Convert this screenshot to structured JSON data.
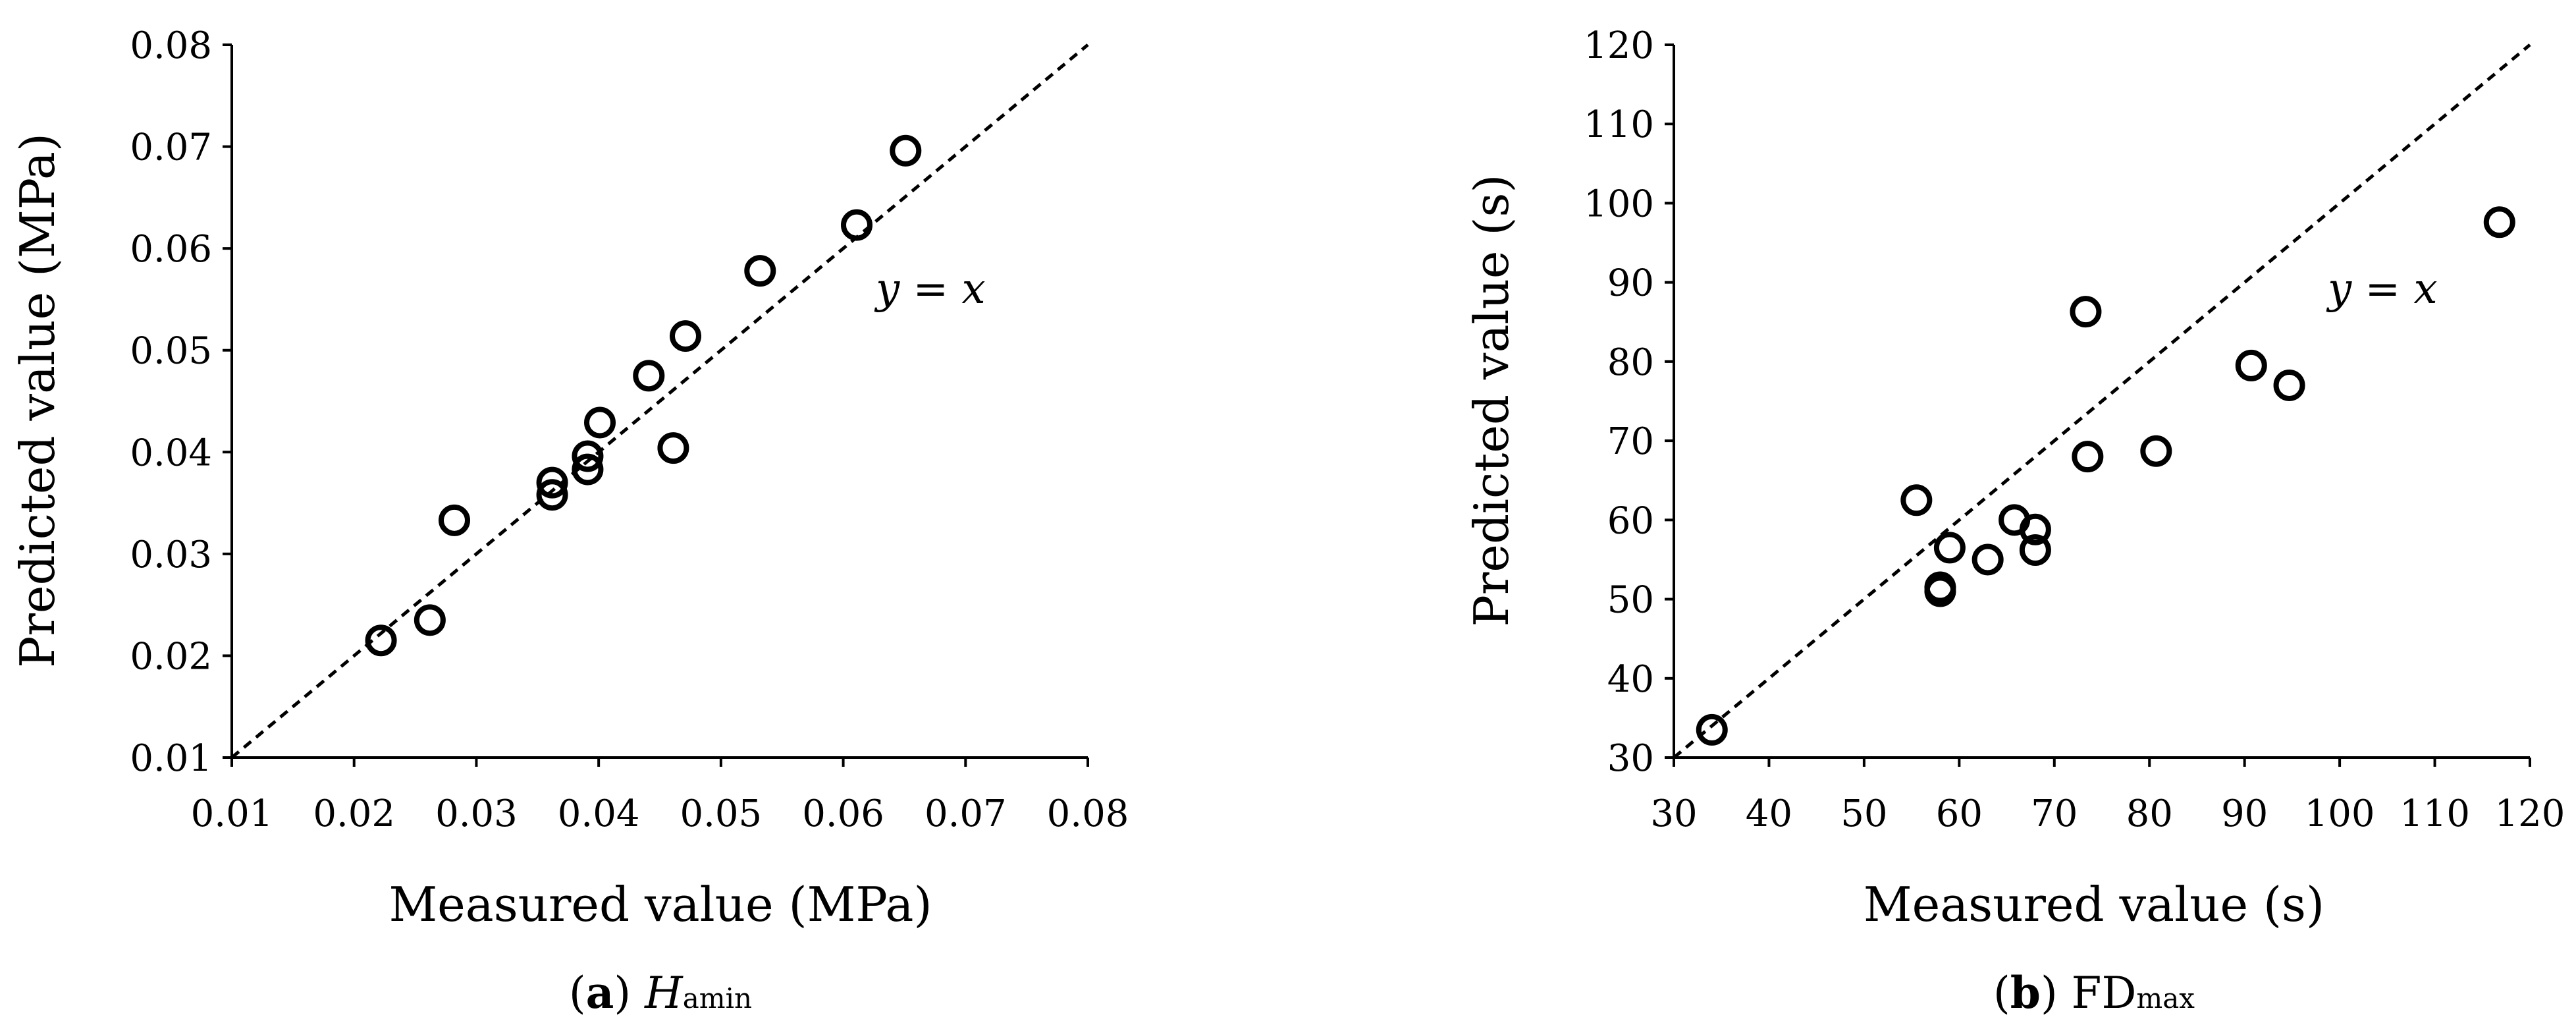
{
  "chart_data": [
    {
      "type": "scatter",
      "xlabel": "Measured value (MPa)",
      "ylabel": "Predicted value (MPa)",
      "xlim": [
        0.01,
        0.08
      ],
      "ylim": [
        0.01,
        0.08
      ],
      "x_ticks": [
        "0.01",
        "0.02",
        "0.03",
        "0.04",
        "0.05",
        "0.06",
        "0.07",
        "0.08"
      ],
      "y_ticks": [
        "0.01",
        "0.02",
        "0.03",
        "0.04",
        "0.05",
        "0.06",
        "0.07",
        "0.08"
      ],
      "reference_line": "y = x",
      "annotation": "y = x",
      "caption": {
        "letter": "a",
        "main": "H",
        "sub": "amin"
      },
      "grid": false,
      "points": [
        {
          "x": 0.0222,
          "y": 0.0215
        },
        {
          "x": 0.0262,
          "y": 0.0235
        },
        {
          "x": 0.0282,
          "y": 0.0333
        },
        {
          "x": 0.0362,
          "y": 0.037
        },
        {
          "x": 0.0362,
          "y": 0.0358
        },
        {
          "x": 0.0391,
          "y": 0.0396
        },
        {
          "x": 0.0391,
          "y": 0.0383
        },
        {
          "x": 0.0401,
          "y": 0.0429
        },
        {
          "x": 0.0441,
          "y": 0.0475
        },
        {
          "x": 0.0461,
          "y": 0.0404
        },
        {
          "x": 0.0471,
          "y": 0.0514
        },
        {
          "x": 0.0532,
          "y": 0.0578
        },
        {
          "x": 0.0611,
          "y": 0.0623
        },
        {
          "x": 0.0651,
          "y": 0.0696
        }
      ]
    },
    {
      "type": "scatter",
      "xlabel": "Measured value (s)",
      "ylabel": "Predicted value (s)",
      "xlim": [
        30,
        120
      ],
      "ylim": [
        30,
        120
      ],
      "x_ticks": [
        "30",
        "40",
        "50",
        "60",
        "70",
        "80",
        "90",
        "100",
        "110",
        "120"
      ],
      "y_ticks": [
        "30",
        "40",
        "50",
        "60",
        "70",
        "80",
        "90",
        "100",
        "110",
        "120"
      ],
      "reference_line": "y = x",
      "annotation": "y = x",
      "caption": {
        "letter": "b",
        "main": "FD",
        "sub": "max"
      },
      "grid": false,
      "points": [
        {
          "x": 34.0,
          "y": 33.5
        },
        {
          "x": 55.5,
          "y": 62.5
        },
        {
          "x": 58.0,
          "y": 51.5
        },
        {
          "x": 58.0,
          "y": 51.0
        },
        {
          "x": 59.0,
          "y": 56.5
        },
        {
          "x": 63.0,
          "y": 55.0
        },
        {
          "x": 65.8,
          "y": 60.0
        },
        {
          "x": 68.0,
          "y": 58.8
        },
        {
          "x": 68.0,
          "y": 56.2
        },
        {
          "x": 73.3,
          "y": 86.3
        },
        {
          "x": 73.5,
          "y": 68.0
        },
        {
          "x": 80.7,
          "y": 68.7
        },
        {
          "x": 90.7,
          "y": 79.5
        },
        {
          "x": 94.7,
          "y": 77.0
        },
        {
          "x": 116.8,
          "y": 97.6
        }
      ]
    }
  ]
}
